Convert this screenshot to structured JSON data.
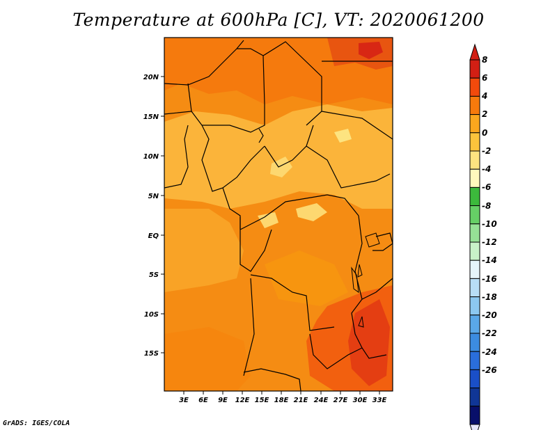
{
  "title": "Temperature at 600hPa [C], VT: 2020061200",
  "footer": "GrADS: IGES/COLA",
  "map": {
    "lat_labels": [
      "20N",
      "15N",
      "10N",
      "5N",
      "EQ",
      "5S",
      "10S",
      "15S"
    ],
    "lon_labels": [
      "3E",
      "6E",
      "9E",
      "12E",
      "15E",
      "18E",
      "21E",
      "24E",
      "27E",
      "30E",
      "33E"
    ]
  },
  "colorbar": {
    "labels": [
      "8",
      "6",
      "4",
      "2",
      "0",
      "-2",
      "-4",
      "-6",
      "-8",
      "-10",
      "-12",
      "-14",
      "-16",
      "-18",
      "-20",
      "-22",
      "-24",
      "-26"
    ],
    "colors": [
      "#ffffff",
      "#d21f14",
      "#f24a0c",
      "#f77a0c",
      "#fba71e",
      "#fcc43c",
      "#fde480",
      "#fff9bd",
      "#3cb93c",
      "#66cf66",
      "#96e196",
      "#c8f2c8",
      "#e6f5fb",
      "#b8def6",
      "#8cc8f0",
      "#5aa8e8",
      "#3c8ce0",
      "#2a6edc",
      "#1a4fc8",
      "#103696",
      "#080f6a",
      "#e6e6fa"
    ]
  }
}
